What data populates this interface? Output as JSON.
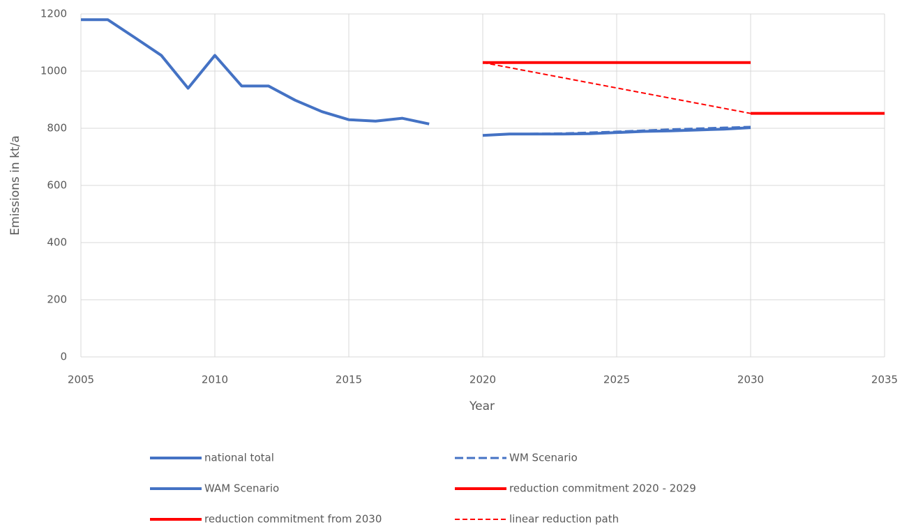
{
  "chart_data": {
    "type": "line",
    "x_label": "Year",
    "y_label": "Emissions in kt/a",
    "xlim": [
      2005,
      2035
    ],
    "xticks": [
      2005,
      2010,
      2015,
      2020,
      2025,
      2030,
      2035
    ],
    "ylim": [
      0,
      1200
    ],
    "yticks": [
      0,
      200,
      400,
      600,
      800,
      1000,
      1200
    ],
    "grid": true,
    "legend": "bottom",
    "series": [
      {
        "name": "national total",
        "color": "#4472c4",
        "dash": "solid",
        "x": [
          2005,
          2006,
          2007,
          2008,
          2009,
          2010,
          2011,
          2012,
          2013,
          2014,
          2015,
          2016,
          2017,
          2018
        ],
        "values": [
          1180,
          1180,
          1118,
          1055,
          940,
          1055,
          948,
          948,
          898,
          858,
          830,
          825,
          835,
          815
        ]
      },
      {
        "name": "WM Scenario",
        "color": "#4472c4",
        "dash": "dashed",
        "x": [
          2020,
          2021,
          2022,
          2023,
          2024,
          2025,
          2026,
          2027,
          2028,
          2029,
          2030
        ],
        "values": [
          775,
          780,
          781,
          782,
          785,
          788,
          792,
          796,
          799,
          802,
          805
        ]
      },
      {
        "name": "WAM Scenario",
        "color": "#4472c4",
        "dash": "solid",
        "x": [
          2020,
          2021,
          2022,
          2023,
          2024,
          2025,
          2026,
          2027,
          2028,
          2029,
          2030
        ],
        "values": [
          775,
          780,
          780,
          780,
          781,
          785,
          789,
          791,
          794,
          797,
          802
        ]
      },
      {
        "name": "reduction commitment 2020 - 2029",
        "color": "#ff0000",
        "dash": "solid",
        "x": [
          2020,
          2030
        ],
        "values": [
          1030,
          1030
        ]
      },
      {
        "name": "reduction commitment from 2030",
        "color": "#ff0000",
        "dash": "solid",
        "x": [
          2030,
          2035
        ],
        "values": [
          852,
          852
        ]
      },
      {
        "name": "linear reduction path",
        "color": "#ff0000",
        "dash": "dashed-thin",
        "x": [
          2020,
          2030
        ],
        "values": [
          1030,
          852
        ]
      }
    ]
  }
}
